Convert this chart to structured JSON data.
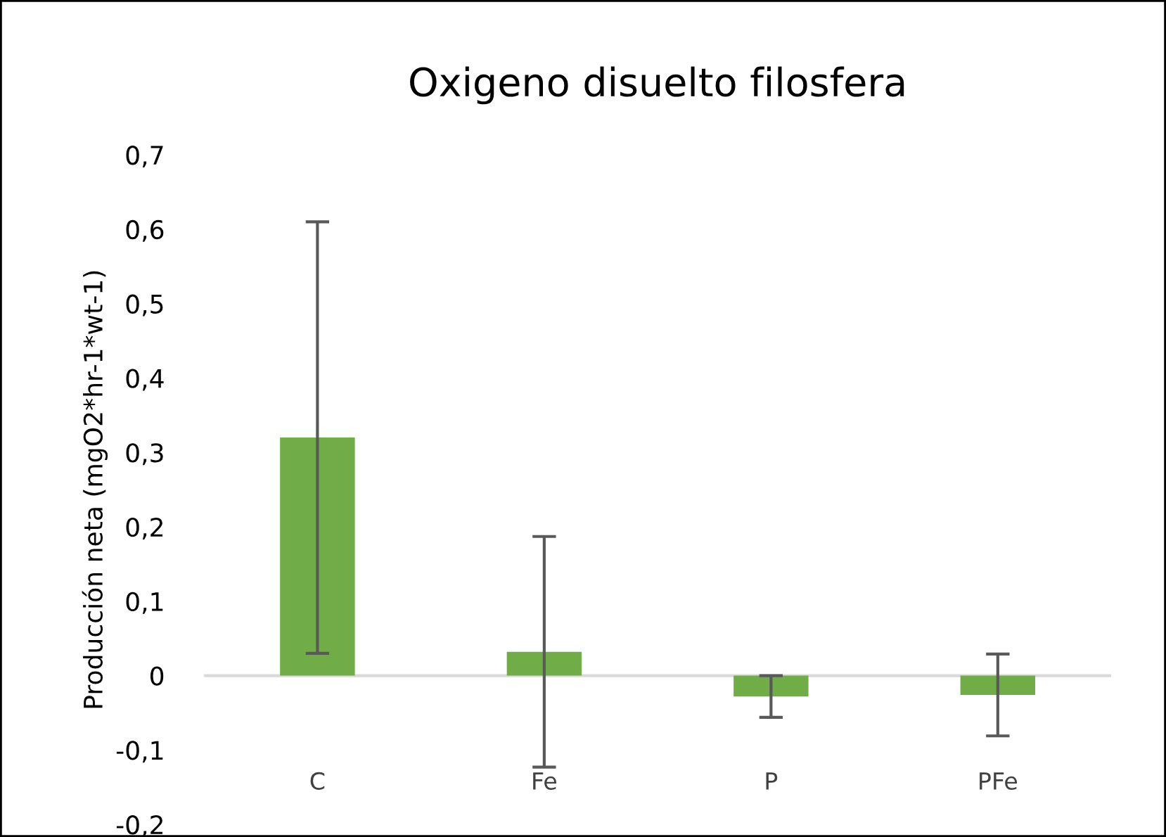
{
  "chart_data": {
    "type": "bar",
    "title": "Oxigeno disuelto filosfera",
    "ylabel": "Producción neta (mgO2*hr-1*wt-1)",
    "categories": [
      "C",
      "Fe",
      "P",
      "PFe"
    ],
    "values": [
      0.32,
      0.032,
      -0.028,
      -0.026
    ],
    "errors": [
      0.29,
      0.155,
      0.028,
      0.055
    ],
    "color": "#70ad47",
    "ylim": [
      -0.2,
      0.7
    ],
    "yticks": [
      {
        "value": -0.2,
        "label": "-0,2"
      },
      {
        "value": -0.1,
        "label": "-0,1"
      },
      0,
      {
        "value": 0.1,
        "label": "0,1"
      },
      {
        "value": 0.2,
        "label": "0,2"
      },
      {
        "value": 0.3,
        "label": "0,3"
      },
      {
        "value": 0.4,
        "label": "0,4"
      },
      {
        "value": 0.5,
        "label": "0,5"
      },
      {
        "value": 0.6,
        "label": "0,6"
      },
      {
        "value": 0.7,
        "label": "0,7"
      }
    ],
    "ref_lines": [
      {
        "axis": "y",
        "value": 0,
        "color": "#d9d9d9"
      }
    ],
    "grid": false,
    "legend": false
  }
}
